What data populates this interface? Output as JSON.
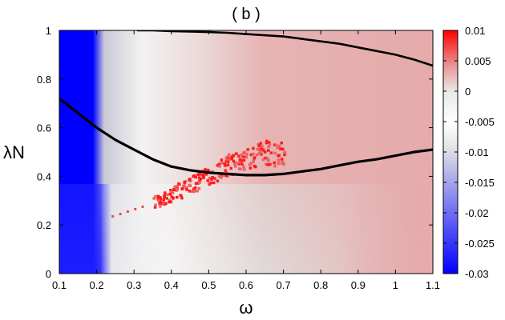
{
  "chart_data": {
    "type": "heatmap",
    "title": "( b )",
    "xlabel": "ω",
    "ylabel": "λN",
    "xlim": [
      0.1,
      1.1
    ],
    "ylim": [
      0,
      1
    ],
    "x_ticks": [
      "0.1",
      "0.2",
      "0.3",
      "0.4",
      "0.5",
      "0.6",
      "0.7",
      "0.8",
      "0.9",
      "1",
      "1.1"
    ],
    "y_ticks": [
      "0",
      "0.2",
      "0.4",
      "0.6",
      "0.8",
      "1"
    ],
    "colorbar": {
      "range": [
        -0.03,
        0.01
      ],
      "ticks": [
        "0.01",
        "0.005",
        "0",
        "-0.005",
        "-0.01",
        "-0.015",
        "-0.02",
        "-0.025",
        "-0.03"
      ],
      "colors": [
        "#0000ff",
        "#ffffff",
        "#ff0000"
      ]
    },
    "curves": [
      {
        "x": [
          0.1,
          0.15,
          0.2,
          0.25,
          0.3,
          0.35,
          0.4,
          0.45,
          0.5,
          0.55,
          0.6,
          0.65,
          0.7,
          0.75,
          0.8,
          0.85,
          0.9,
          0.95,
          1.0,
          1.05,
          1.1
        ],
        "y": [
          0.72,
          0.66,
          0.6,
          0.55,
          0.51,
          0.47,
          0.44,
          0.425,
          0.415,
          0.41,
          0.405,
          0.405,
          0.41,
          0.42,
          0.43,
          0.445,
          0.46,
          0.47,
          0.485,
          0.5,
          0.51
        ]
      },
      {
        "x": [
          0.31,
          0.35,
          0.4,
          0.45,
          0.5,
          0.55,
          0.6,
          0.65,
          0.7,
          0.75,
          0.8,
          0.85,
          0.9,
          0.95,
          1.0,
          1.05,
          1.1
        ],
        "y": [
          1.0,
          1.0,
          0.997,
          0.995,
          0.993,
          0.99,
          0.985,
          0.98,
          0.975,
          0.965,
          0.955,
          0.945,
          0.93,
          0.915,
          0.9,
          0.88,
          0.855
        ]
      }
    ],
    "positive_region": {
      "x": [
        0.35,
        0.4,
        0.45,
        0.5,
        0.55,
        0.6,
        0.65,
        0.7
      ],
      "y": [
        0.29,
        0.33,
        0.37,
        0.41,
        0.45,
        0.48,
        0.5,
        0.5
      ]
    }
  }
}
